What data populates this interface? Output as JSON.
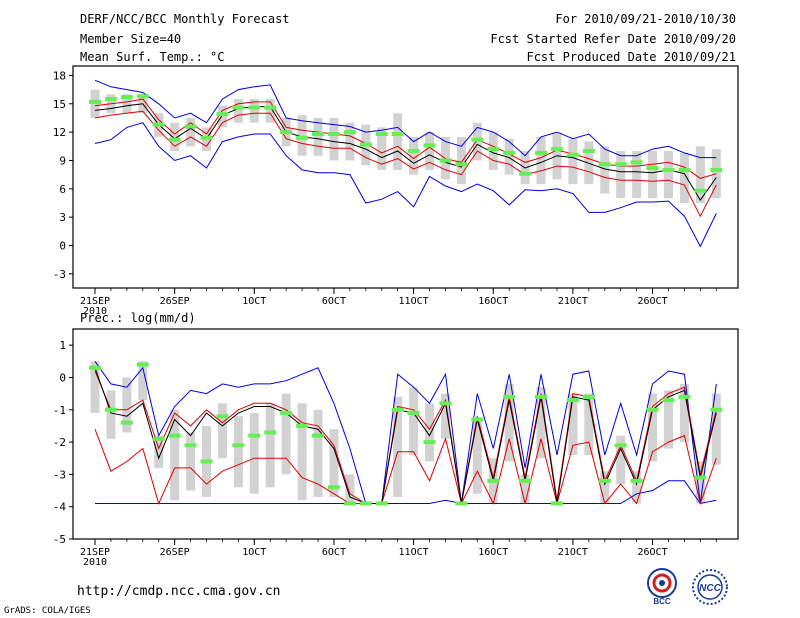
{
  "header": {
    "title": "DERF/NCC/BCC Monthly Forecast",
    "member_size": "Member Size=40",
    "variable": "Mean Surf. Temp.: °C",
    "period": "For 2010/09/21-2010/10/30",
    "refer_date": "Fcst Started Refer Date 2010/09/20",
    "produced_date": "Fcst Produced Date 2010/09/21"
  },
  "footer": {
    "url": "http://cmdp.ncc.cma.gov.cn",
    "credit": "GrADS: COLA/IGES",
    "logo_left": "BCC",
    "logo_right": "NCC"
  },
  "colors": {
    "ensemble_mean": "#000000",
    "inner_band": "#e00000",
    "outer_band": "#0000dd",
    "box": "#d2d2d2",
    "median_marker": "#66ee55"
  },
  "chart_data": [
    {
      "type": "line",
      "title": "Mean Surf. Temp.: °C",
      "xlabel": "",
      "ylabel": "°C",
      "ylim": [
        -4.5,
        19
      ],
      "yticks": [
        18,
        15,
        12,
        9,
        6,
        3,
        0,
        -3
      ],
      "x_tick_days": [
        0,
        5,
        10,
        15,
        20,
        25,
        30,
        35
      ],
      "x_tick_labels": [
        "21SEP",
        "26SEP",
        "1OCT",
        "6OCT",
        "11OCT",
        "16OCT",
        "21OCT",
        "26OCT"
      ],
      "x_year_label": "2010",
      "days": 40,
      "series": [
        {
          "name": "max",
          "color": "#0000dd",
          "values": [
            17.5,
            16.8,
            16.5,
            16.2,
            15,
            13.5,
            14,
            13,
            15.5,
            16.5,
            16.8,
            17,
            13.5,
            13.2,
            13,
            12.8,
            12.6,
            12,
            12.2,
            12.5,
            11,
            12,
            11,
            10.5,
            12.5,
            12,
            11,
            9.5,
            11.5,
            12,
            11.3,
            11.8,
            10.2,
            9.5,
            9.5,
            10.2,
            10.5,
            9.8,
            9.3,
            9.3
          ]
        },
        {
          "name": "upper",
          "color": "#e00000",
          "values": [
            14.8,
            15,
            15.2,
            15.5,
            13.3,
            11.8,
            13,
            11.8,
            14.3,
            15,
            15.2,
            15.2,
            12.5,
            12.2,
            12,
            11.8,
            11.6,
            10.8,
            9.8,
            10.5,
            9.2,
            10.4,
            9.2,
            8.8,
            11.2,
            10.5,
            9.7,
            8.8,
            9.3,
            10.1,
            9.7,
            9.2,
            8.6,
            8.4,
            8.4,
            8.6,
            8.8,
            8.3,
            7.1,
            7.6
          ]
        },
        {
          "name": "mean",
          "color": "#000000",
          "values": [
            14.3,
            14.5,
            14.8,
            15,
            12.8,
            11.3,
            12.4,
            11.3,
            13.8,
            14.5,
            14.7,
            14.7,
            12,
            11.5,
            11.3,
            11,
            10.8,
            10.2,
            9.3,
            10,
            8.7,
            9.6,
            8.8,
            8.3,
            10.7,
            9.8,
            9.3,
            8.2,
            8.8,
            9.5,
            9.3,
            8.7,
            8.1,
            7.8,
            7.8,
            7.7,
            8,
            7.6,
            4.8,
            7.2
          ]
        },
        {
          "name": "lower",
          "color": "#e00000",
          "values": [
            13.5,
            13.8,
            14,
            14.2,
            12.2,
            10.5,
            11.5,
            10.5,
            13,
            13.8,
            14,
            14,
            11.3,
            10.8,
            10.5,
            10.3,
            10.3,
            9.3,
            8.6,
            9.2,
            8.1,
            8.8,
            8,
            7.5,
            10,
            9,
            8.6,
            7.5,
            7.9,
            8.4,
            8.3,
            7.8,
            7.2,
            6.9,
            6.9,
            6.8,
            6.9,
            6.4,
            3.1,
            6.4
          ]
        },
        {
          "name": "min",
          "color": "#0000dd",
          "values": [
            10.8,
            11.2,
            12.5,
            13,
            10.5,
            9,
            9.5,
            8.2,
            11,
            11.5,
            11.8,
            11.8,
            9.5,
            8,
            7.7,
            7.7,
            7.5,
            4.5,
            4.9,
            5.7,
            4.1,
            7.3,
            6.3,
            5.7,
            6.5,
            5.8,
            4.3,
            5.9,
            5.8,
            6,
            5.5,
            3.5,
            3.5,
            4,
            4.6,
            4.6,
            4.7,
            3.1,
            -0.1,
            3.4
          ]
        },
        {
          "name": "box_top",
          "color": "#d2d2d2",
          "values": [
            16.5,
            16,
            16,
            16,
            14,
            13,
            13.5,
            12.5,
            14.8,
            15.5,
            15.5,
            15.5,
            13.5,
            13.8,
            13.5,
            13.5,
            13,
            12.8,
            12.5,
            14,
            11.5,
            12,
            11.5,
            11.5,
            13,
            12,
            11.3,
            10,
            11.5,
            12,
            11.3,
            11,
            10.5,
            10,
            10,
            10,
            10,
            9.8,
            10.5,
            10.2
          ]
        },
        {
          "name": "box_bottom",
          "color": "#d2d2d2",
          "values": [
            13.5,
            14,
            14,
            14,
            11.5,
            10,
            10.5,
            10,
            12.5,
            13,
            13,
            13,
            10.5,
            9.5,
            9.5,
            9,
            9,
            8.5,
            8,
            8,
            7.5,
            8,
            7,
            6.5,
            9,
            8,
            7.5,
            6.5,
            6.5,
            7,
            6.5,
            6.5,
            5.5,
            5,
            5,
            5,
            5,
            4.5,
            4.5,
            5
          ]
        },
        {
          "name": "median",
          "color": "#66ee55",
          "values": [
            15.2,
            15.5,
            15.7,
            15.8,
            12.8,
            11.2,
            12.6,
            11.4,
            13.9,
            14.6,
            14.6,
            14.6,
            12,
            11.4,
            11.8,
            11.8,
            12,
            10.7,
            11.8,
            11.8,
            10,
            10.6,
            9,
            8.6,
            11.2,
            10.2,
            9.8,
            7.6,
            9.8,
            10.2,
            9.6,
            10,
            8.6,
            8.6,
            8.8,
            8.2,
            8,
            8,
            5.8,
            8
          ]
        }
      ]
    },
    {
      "type": "line",
      "title": "Prec.: log(mm/d)",
      "xlabel": "",
      "ylabel": "log(mm/d)",
      "ylim": [
        -5,
        1.5
      ],
      "yticks": [
        1,
        0,
        -1,
        -2,
        -3,
        -4,
        -5
      ],
      "x_tick_days": [
        0,
        5,
        10,
        15,
        20,
        25,
        30,
        35
      ],
      "x_tick_labels": [
        "21SEP",
        "26SEP",
        "1OCT",
        "6OCT",
        "11OCT",
        "16OCT",
        "21OCT",
        "26OCT"
      ],
      "x_year_label": "2010",
      "days": 40,
      "series": [
        {
          "name": "max",
          "color": "#0000dd",
          "values": [
            0.5,
            -0.2,
            -0.3,
            0.3,
            -1.8,
            -0.9,
            -0.4,
            -0.5,
            -0.2,
            -0.3,
            -0.2,
            -0.2,
            -0.1,
            0.1,
            0.3,
            -0.8,
            -2.2,
            -3.9,
            -3.9,
            0.1,
            -0.3,
            -0.8,
            0.1,
            -3.9,
            -0.5,
            -2.2,
            0.1,
            -2.8,
            0.1,
            -2.4,
            0.1,
            0.2,
            -2.4,
            -0.8,
            -2.4,
            -0.2,
            0.2,
            0.1,
            -3.9,
            -0.2
          ]
        },
        {
          "name": "upper",
          "color": "#e00000",
          "values": [
            0.2,
            -1,
            -1,
            -0.7,
            -2.2,
            -1.1,
            -1.5,
            -1,
            -1.4,
            -1,
            -0.8,
            -0.8,
            -1,
            -1.4,
            -1.5,
            -2.1,
            -3.6,
            -3.9,
            -3.9,
            -0.9,
            -1,
            -1.6,
            -0.7,
            -3.9,
            -1.2,
            -3.1,
            -0.6,
            -3.1,
            -0.5,
            -3.8,
            -0.5,
            -0.6,
            -3.2,
            -2.1,
            -3.2,
            -0.9,
            -0.5,
            -0.3,
            -3,
            -1
          ]
        },
        {
          "name": "mean",
          "color": "#000000",
          "values": [
            0.3,
            -1.1,
            -1.2,
            -0.8,
            -2.5,
            -1.3,
            -1.8,
            -1.1,
            -1.5,
            -1.1,
            -0.9,
            -0.9,
            -1.1,
            -1.5,
            -1.6,
            -2.2,
            -3.7,
            -3.9,
            -3.9,
            -1,
            -1.1,
            -1.8,
            -0.8,
            -3.9,
            -1.3,
            -3.2,
            -0.7,
            -3.2,
            -0.6,
            -3.9,
            -0.6,
            -0.7,
            -3.3,
            -2.2,
            -3.3,
            -1,
            -0.6,
            -0.4,
            -3.1,
            -1.1
          ]
        },
        {
          "name": "lower",
          "color": "#e00000",
          "values": [
            -1.6,
            -2.9,
            -2.6,
            -2.2,
            -3.9,
            -2.8,
            -2.8,
            -3.3,
            -2.9,
            -2.7,
            -2.5,
            -2.5,
            -2.5,
            -3.1,
            -3.3,
            -3.6,
            -3.9,
            -3.9,
            -3.9,
            -2.3,
            -2.3,
            -3.2,
            -1.9,
            -3.9,
            -2.9,
            -3.9,
            -1.9,
            -3.9,
            -1.9,
            -3.9,
            -2.1,
            -2,
            -3.9,
            -3.3,
            -3.9,
            -2.3,
            -2,
            -1.8,
            -3.9,
            -2.5
          ]
        },
        {
          "name": "min",
          "color": "#0000dd",
          "values": [
            -3.9,
            -3.9,
            -3.9,
            -3.9,
            -3.9,
            -3.9,
            -3.9,
            -3.9,
            -3.9,
            -3.9,
            -3.9,
            -3.9,
            -3.9,
            -3.9,
            -3.9,
            -3.9,
            -3.9,
            -3.9,
            -3.9,
            -3.9,
            -3.9,
            -3.9,
            -3.8,
            -3.9,
            -3.9,
            -3.9,
            -3.9,
            -3.9,
            -3.9,
            -3.9,
            -3.9,
            -3.9,
            -3.9,
            -3.9,
            -3.6,
            -3.5,
            -3.2,
            -3.2,
            -3.9,
            -3.8
          ]
        },
        {
          "name": "box_top",
          "color": "#d2d2d2",
          "values": [
            0.5,
            -0.4,
            0,
            0.5,
            -1.8,
            -1,
            -1.7,
            -1.5,
            -0.8,
            -1.2,
            -1.1,
            -0.8,
            -0.5,
            -0.8,
            -1,
            -1.6,
            -3,
            -3.9,
            -3.9,
            -0.6,
            -0.3,
            -0.8,
            -0.5,
            -3.9,
            -1.3,
            -2.5,
            -0.2,
            -3,
            -0.3,
            -3.9,
            -0.5,
            -0.5,
            -2.9,
            -1.8,
            -2.9,
            -0.5,
            -0.4,
            -0.2,
            -2.6,
            -0.5
          ]
        },
        {
          "name": "box_bottom",
          "color": "#d2d2d2",
          "values": [
            -1.1,
            -1.9,
            -1.7,
            -0.7,
            -2.8,
            -3.8,
            -3.5,
            -3.7,
            -2.5,
            -3.4,
            -3.6,
            -3.4,
            -3,
            -3.8,
            -3.7,
            -3.7,
            -3.9,
            -3.9,
            -3.9,
            -3.7,
            -2.4,
            -2.6,
            -1.9,
            -3.9,
            -3.6,
            -3.9,
            -2.6,
            -3.9,
            -2.5,
            -3.9,
            -2.4,
            -2.4,
            -3.9,
            -3.3,
            -3.9,
            -2.6,
            -2.2,
            -2,
            -3.9,
            -2.7
          ]
        },
        {
          "name": "median",
          "color": "#66ee55",
          "values": [
            0.3,
            -1,
            -1.4,
            0.4,
            -1.9,
            -1.8,
            -2.1,
            -2.6,
            -1.2,
            -2.1,
            -1.8,
            -1.7,
            -1.1,
            -1.5,
            -1.8,
            -3.4,
            -3.9,
            -3.9,
            -3.9,
            -1,
            -1.1,
            -2,
            -0.8,
            -3.9,
            -1.3,
            -3.2,
            -0.6,
            -3.2,
            -0.6,
            -3.9,
            -0.7,
            -0.6,
            -3.2,
            -2.1,
            -3.2,
            -1,
            -0.7,
            -0.6,
            -3.1,
            -1
          ]
        }
      ]
    }
  ]
}
